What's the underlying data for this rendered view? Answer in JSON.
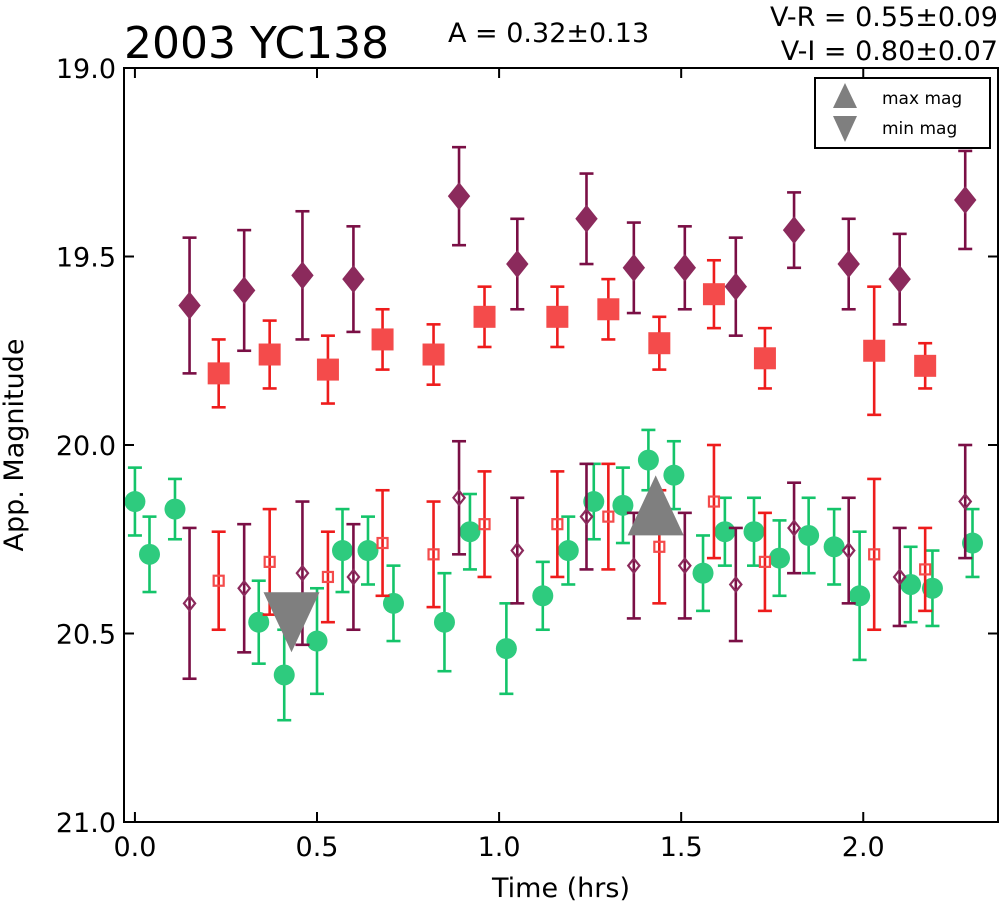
{
  "chart_data": {
    "type": "scatter",
    "title": "2003 YC138",
    "xlabel": "Time (hrs)",
    "ylabel": "App. Magnitude",
    "xlim": [
      -0.03,
      2.37
    ],
    "ylim": [
      21.0,
      19.0
    ],
    "y_inverted": true,
    "grid": false,
    "x_ticks": [
      "0.0",
      "0.5",
      "1.0",
      "1.5",
      "2.0"
    ],
    "x_tick_values": [
      0.0,
      0.5,
      1.0,
      1.5,
      2.0
    ],
    "y_ticks": [
      "19.0",
      "19.5",
      "20.0",
      "20.5",
      "21.0"
    ],
    "y_tick_values": [
      19.0,
      19.5,
      20.0,
      20.5,
      21.0
    ],
    "annotations": {
      "amplitude": "A  = 0.32±0.13",
      "v_r": "V-R = 0.55±0.09",
      "v_i": "V-I  = 0.80±0.07"
    },
    "legend": {
      "placement": "top-right",
      "entries": [
        {
          "label": "max mag",
          "marker": "triangle-up",
          "color": "#7f7f7f"
        },
        {
          "label": "min mag",
          "marker": "triangle-down",
          "color": "#7f7f7f"
        }
      ]
    },
    "series": [
      {
        "marker": "diamond",
        "filled": true,
        "color": "#8b2a5c",
        "errcolor": "#7a0f45",
        "x": [
          0.15,
          0.3,
          0.46,
          0.6,
          0.89,
          1.05,
          1.24,
          1.37,
          1.51,
          1.65,
          1.81,
          1.96,
          2.1,
          2.28
        ],
        "y": [
          19.63,
          19.59,
          19.55,
          19.56,
          19.34,
          19.52,
          19.4,
          19.53,
          19.53,
          19.58,
          19.43,
          19.52,
          19.56,
          19.35
        ],
        "err": [
          0.18,
          0.16,
          0.17,
          0.14,
          0.13,
          0.12,
          0.12,
          0.12,
          0.11,
          0.13,
          0.1,
          0.12,
          0.12,
          0.13
        ]
      },
      {
        "marker": "square",
        "filled": true,
        "color": "#f44b4b",
        "errcolor": "#ee1c1c",
        "x": [
          0.23,
          0.37,
          0.53,
          0.68,
          0.82,
          0.96,
          1.16,
          1.3,
          1.44,
          1.59,
          1.73,
          2.03,
          2.17
        ],
        "y": [
          19.81,
          19.76,
          19.8,
          19.72,
          19.76,
          19.66,
          19.66,
          19.64,
          19.73,
          19.6,
          19.77,
          19.75,
          19.79
        ],
        "err": [
          0.09,
          0.09,
          0.09,
          0.08,
          0.08,
          0.08,
          0.08,
          0.08,
          0.07,
          0.09,
          0.08,
          0.17,
          0.06
        ]
      },
      {
        "marker": "circle",
        "filled": true,
        "color": "#2ecb7e",
        "errcolor": "#14c46a",
        "x": [
          0.0,
          0.04,
          0.11,
          0.34,
          0.41,
          0.5,
          0.57,
          0.64,
          0.71,
          0.85,
          0.92,
          1.02,
          1.12,
          1.19,
          1.26,
          1.34,
          1.41,
          1.48,
          1.56,
          1.62,
          1.7,
          1.77,
          1.85,
          1.92,
          1.99,
          2.13,
          2.19,
          2.3
        ],
        "y": [
          20.15,
          20.29,
          20.17,
          20.47,
          20.61,
          20.52,
          20.28,
          20.28,
          20.42,
          20.47,
          20.23,
          20.54,
          20.4,
          20.28,
          20.15,
          20.16,
          20.04,
          20.08,
          20.34,
          20.23,
          20.23,
          20.3,
          20.24,
          20.27,
          20.4,
          20.37,
          20.38,
          20.26
        ],
        "err": [
          0.09,
          0.1,
          0.08,
          0.11,
          0.12,
          0.14,
          0.11,
          0.09,
          0.1,
          0.13,
          0.1,
          0.12,
          0.09,
          0.09,
          0.1,
          0.1,
          0.08,
          0.09,
          0.1,
          0.09,
          0.09,
          0.1,
          0.1,
          0.1,
          0.17,
          0.1,
          0.1,
          0.09
        ]
      },
      {
        "marker": "diamond",
        "filled": false,
        "color": "#8b2a5c",
        "errcolor": "#7a0f45",
        "x": [
          0.15,
          0.3,
          0.46,
          0.6,
          0.89,
          1.05,
          1.24,
          1.37,
          1.51,
          1.65,
          1.81,
          1.96,
          2.1,
          2.28
        ],
        "y": [
          20.42,
          20.38,
          20.34,
          20.35,
          20.14,
          20.28,
          20.19,
          20.32,
          20.32,
          20.37,
          20.22,
          20.28,
          20.35,
          20.15
        ],
        "err": [
          0.2,
          0.17,
          0.19,
          0.14,
          0.15,
          0.14,
          0.14,
          0.14,
          0.14,
          0.15,
          0.12,
          0.14,
          0.13,
          0.15
        ]
      },
      {
        "marker": "square",
        "filled": false,
        "color": "#f44b4b",
        "errcolor": "#ee1c1c",
        "x": [
          0.23,
          0.37,
          0.53,
          0.68,
          0.82,
          0.96,
          1.16,
          1.3,
          1.44,
          1.59,
          1.73,
          2.03,
          2.17
        ],
        "y": [
          20.36,
          20.31,
          20.35,
          20.26,
          20.29,
          20.21,
          20.21,
          20.19,
          20.27,
          20.15,
          20.31,
          20.29,
          20.33
        ],
        "err": [
          0.13,
          0.14,
          0.12,
          0.14,
          0.14,
          0.14,
          0.14,
          0.14,
          0.15,
          0.15,
          0.13,
          0.2,
          0.11
        ]
      }
    ],
    "extrema": [
      {
        "label": "max mag",
        "marker": "triangle-up",
        "x": 1.43,
        "y": 20.16,
        "color": "#7f7f7f"
      },
      {
        "label": "min mag",
        "marker": "triangle-down",
        "x": 0.43,
        "y": 20.47,
        "color": "#7f7f7f"
      }
    ]
  }
}
